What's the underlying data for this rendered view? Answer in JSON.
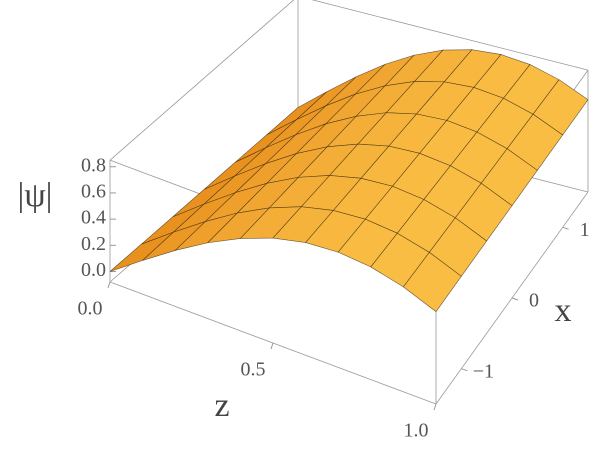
{
  "chart_data": {
    "type": "surface",
    "zlabel": "|ψ|",
    "xlabel": "z",
    "ylabel": "x",
    "x": [
      0,
      0.1,
      0.2,
      0.3,
      0.4,
      0.5,
      0.6,
      0.7,
      0.8,
      0.9,
      1.0
    ],
    "y": [
      -1.5,
      -1,
      -0.5,
      0,
      0.5,
      1,
      1.5
    ],
    "values": [
      [
        0,
        0.178,
        0.347,
        0.499,
        0.625,
        0.721,
        0.78,
        0.8,
        0.78,
        0.721,
        0.625
      ],
      [
        0,
        0.178,
        0.347,
        0.499,
        0.625,
        0.721,
        0.78,
        0.8,
        0.78,
        0.721,
        0.625
      ],
      [
        0,
        0.178,
        0.347,
        0.499,
        0.625,
        0.721,
        0.78,
        0.8,
        0.78,
        0.721,
        0.625
      ],
      [
        0,
        0.178,
        0.347,
        0.499,
        0.625,
        0.721,
        0.78,
        0.8,
        0.78,
        0.721,
        0.625
      ],
      [
        0,
        0.178,
        0.347,
        0.499,
        0.625,
        0.721,
        0.78,
        0.8,
        0.78,
        0.721,
        0.625
      ],
      [
        0,
        0.178,
        0.347,
        0.499,
        0.625,
        0.721,
        0.78,
        0.8,
        0.78,
        0.721,
        0.625
      ],
      [
        0,
        0.178,
        0.347,
        0.499,
        0.625,
        0.721,
        0.78,
        0.8,
        0.78,
        0.721,
        0.625
      ]
    ],
    "xlim": [
      0,
      1
    ],
    "ylim": [
      -1.5,
      1.5
    ],
    "zlim": [
      -0.08,
      0.85
    ],
    "xticks": [
      {
        "value": 0,
        "label": "0.0"
      },
      0.5,
      {
        "value": 1,
        "label": "1.0"
      }
    ],
    "yticks": [
      {
        "value": -1,
        "label": "−1"
      },
      0,
      1
    ],
    "zticks": [
      {
        "value": 0,
        "label": "0.0"
      },
      0.2,
      0.4,
      0.6,
      0.8
    ],
    "color_low": "#e07a0c",
    "color_high": "#fbbf45",
    "mesh_color": "#3a2a10"
  }
}
